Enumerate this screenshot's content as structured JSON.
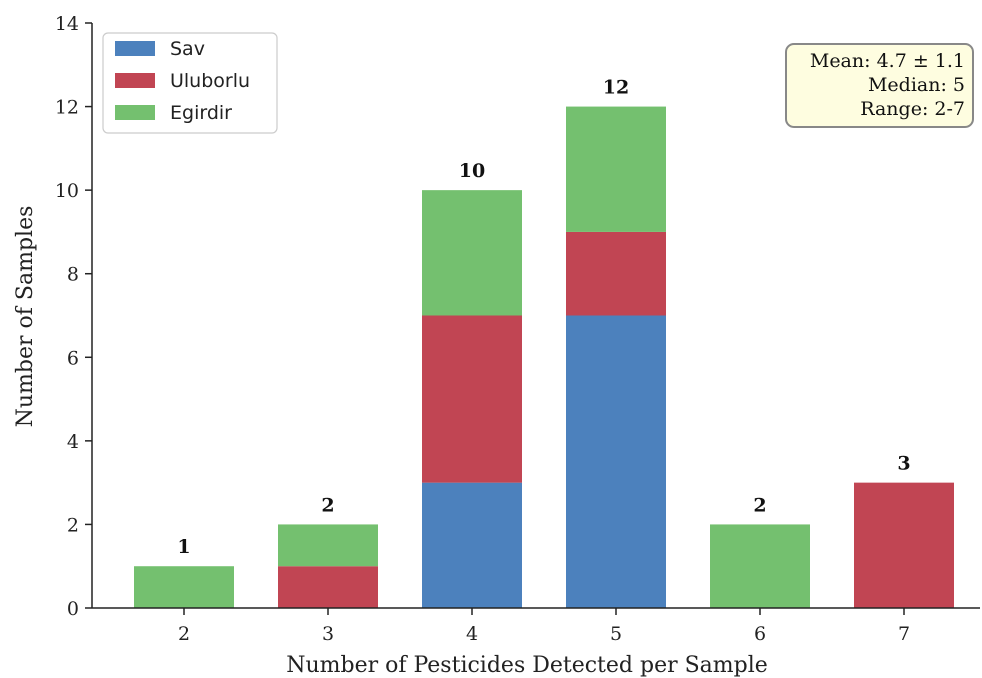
{
  "chart_data": {
    "type": "bar",
    "stacked": true,
    "categories": [
      "2",
      "3",
      "4",
      "5",
      "6",
      "7"
    ],
    "series": [
      {
        "name": "Sav",
        "color": "#4c81bd",
        "values": [
          0,
          0,
          3,
          7,
          0,
          0
        ]
      },
      {
        "name": "Uluborlu",
        "color": "#c14553",
        "values": [
          0,
          1,
          4,
          2,
          0,
          3
        ]
      },
      {
        "name": "Egirdir",
        "color": "#74c06f",
        "values": [
          1,
          1,
          3,
          3,
          2,
          0
        ]
      }
    ],
    "totals": [
      1,
      2,
      10,
      12,
      2,
      3
    ],
    "xlabel": "Number of Pesticides Detected per Sample",
    "ylabel": "Number of Samples",
    "ylim": [
      0,
      14
    ],
    "yticks": [
      0,
      2,
      4,
      6,
      8,
      10,
      12,
      14
    ],
    "legend_position": "top-left",
    "grid": false,
    "stats_box": {
      "lines": [
        "Mean: 4.7 ± 1.1",
        "Median: 5",
        "Range: 2-7"
      ],
      "position": "top-right"
    }
  }
}
